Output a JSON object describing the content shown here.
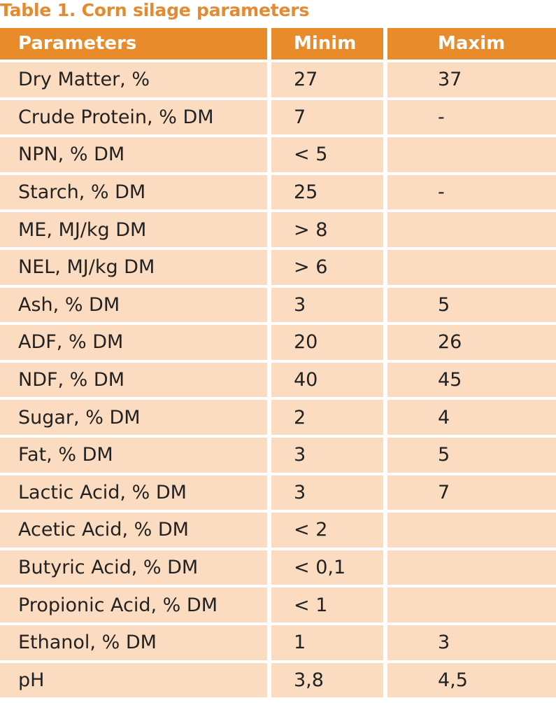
{
  "title": "Table 1. Corn silage parameters",
  "columns": [
    "Parameters",
    "Minim",
    "Maxim"
  ],
  "rows": [
    [
      "Dry Matter, %",
      "27",
      "37"
    ],
    [
      "Crude Protein, % DM",
      "7",
      "-"
    ],
    [
      "NPN, % DM",
      "< 5",
      ""
    ],
    [
      "Starch, % DM",
      "25",
      "-"
    ],
    [
      "ME, MJ/kg DM",
      "> 8",
      ""
    ],
    [
      "NEL, MJ/kg DM",
      "> 6",
      ""
    ],
    [
      "Ash, % DM",
      "3",
      "5"
    ],
    [
      "ADF, % DM",
      "20",
      "26"
    ],
    [
      "NDF, % DM",
      "40",
      "45"
    ],
    [
      "Sugar, % DM",
      "2",
      "4"
    ],
    [
      "Fat, % DM",
      "3",
      "5"
    ],
    [
      "Lactic Acid, % DM",
      "3",
      "7"
    ],
    [
      "Acetic Acid, % DM",
      "< 2",
      ""
    ],
    [
      "Butyric Acid, % DM",
      "< 0,1",
      ""
    ],
    [
      "Propionic Acid, % DM",
      "< 1",
      ""
    ],
    [
      "Ethanol, % DM",
      "1",
      "3"
    ],
    [
      "pH",
      "3,8",
      "4,5"
    ]
  ],
  "colors": {
    "title": "#E58A2E",
    "header_bg": "#E88B2A",
    "header_text": "#FFFFFF",
    "row_bg": "#FBDCC1",
    "row_text": "#222222"
  }
}
